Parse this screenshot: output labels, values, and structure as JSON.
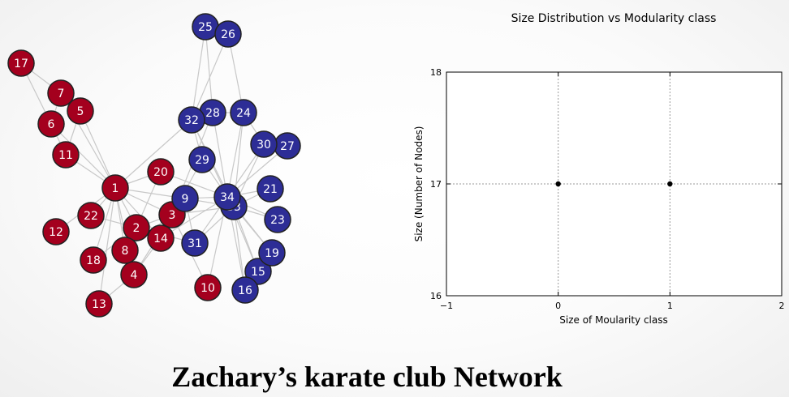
{
  "caption": "Zachary’s karate club Network",
  "network": {
    "group_colors": {
      "red": "#a4001e",
      "blue": "#2d2d96"
    },
    "edge_color": "#c8c8c8",
    "nodes": [
      {
        "id": "1",
        "group": "red"
      },
      {
        "id": "2",
        "group": "red"
      },
      {
        "id": "3",
        "group": "red"
      },
      {
        "id": "4",
        "group": "red"
      },
      {
        "id": "5",
        "group": "red"
      },
      {
        "id": "6",
        "group": "red"
      },
      {
        "id": "7",
        "group": "red"
      },
      {
        "id": "8",
        "group": "red"
      },
      {
        "id": "9",
        "group": "blue"
      },
      {
        "id": "10",
        "group": "red"
      },
      {
        "id": "11",
        "group": "red"
      },
      {
        "id": "12",
        "group": "red"
      },
      {
        "id": "13",
        "group": "red"
      },
      {
        "id": "14",
        "group": "red"
      },
      {
        "id": "15",
        "group": "blue"
      },
      {
        "id": "16",
        "group": "blue"
      },
      {
        "id": "17",
        "group": "red"
      },
      {
        "id": "18",
        "group": "red"
      },
      {
        "id": "19",
        "group": "blue"
      },
      {
        "id": "20",
        "group": "red"
      },
      {
        "id": "21",
        "group": "blue"
      },
      {
        "id": "22",
        "group": "red"
      },
      {
        "id": "23",
        "group": "blue"
      },
      {
        "id": "24",
        "group": "blue"
      },
      {
        "id": "25",
        "group": "blue"
      },
      {
        "id": "26",
        "group": "blue"
      },
      {
        "id": "27",
        "group": "blue"
      },
      {
        "id": "28",
        "group": "blue"
      },
      {
        "id": "29",
        "group": "blue"
      },
      {
        "id": "30",
        "group": "blue"
      },
      {
        "id": "31",
        "group": "blue"
      },
      {
        "id": "32",
        "group": "blue"
      },
      {
        "id": "33",
        "group": "blue"
      },
      {
        "id": "34",
        "group": "blue"
      }
    ],
    "edges": [
      [
        "1",
        "2"
      ],
      [
        "1",
        "3"
      ],
      [
        "1",
        "4"
      ],
      [
        "1",
        "5"
      ],
      [
        "1",
        "6"
      ],
      [
        "1",
        "7"
      ],
      [
        "1",
        "8"
      ],
      [
        "1",
        "9"
      ],
      [
        "1",
        "11"
      ],
      [
        "1",
        "12"
      ],
      [
        "1",
        "13"
      ],
      [
        "1",
        "14"
      ],
      [
        "1",
        "18"
      ],
      [
        "1",
        "20"
      ],
      [
        "1",
        "22"
      ],
      [
        "1",
        "32"
      ],
      [
        "2",
        "3"
      ],
      [
        "2",
        "4"
      ],
      [
        "2",
        "8"
      ],
      [
        "2",
        "14"
      ],
      [
        "2",
        "18"
      ],
      [
        "2",
        "20"
      ],
      [
        "2",
        "22"
      ],
      [
        "2",
        "31"
      ],
      [
        "3",
        "4"
      ],
      [
        "3",
        "8"
      ],
      [
        "3",
        "9"
      ],
      [
        "3",
        "10"
      ],
      [
        "3",
        "14"
      ],
      [
        "3",
        "28"
      ],
      [
        "3",
        "29"
      ],
      [
        "3",
        "33"
      ],
      [
        "4",
        "8"
      ],
      [
        "4",
        "13"
      ],
      [
        "4",
        "14"
      ],
      [
        "5",
        "7"
      ],
      [
        "5",
        "11"
      ],
      [
        "6",
        "7"
      ],
      [
        "6",
        "11"
      ],
      [
        "6",
        "17"
      ],
      [
        "7",
        "17"
      ],
      [
        "9",
        "31"
      ],
      [
        "9",
        "33"
      ],
      [
        "9",
        "34"
      ],
      [
        "10",
        "34"
      ],
      [
        "14",
        "34"
      ],
      [
        "15",
        "33"
      ],
      [
        "15",
        "34"
      ],
      [
        "16",
        "33"
      ],
      [
        "16",
        "34"
      ],
      [
        "19",
        "33"
      ],
      [
        "19",
        "34"
      ],
      [
        "20",
        "34"
      ],
      [
        "21",
        "33"
      ],
      [
        "21",
        "34"
      ],
      [
        "23",
        "33"
      ],
      [
        "23",
        "34"
      ],
      [
        "24",
        "26"
      ],
      [
        "24",
        "28"
      ],
      [
        "24",
        "30"
      ],
      [
        "24",
        "33"
      ],
      [
        "24",
        "34"
      ],
      [
        "25",
        "26"
      ],
      [
        "25",
        "28"
      ],
      [
        "25",
        "32"
      ],
      [
        "26",
        "32"
      ],
      [
        "27",
        "30"
      ],
      [
        "27",
        "34"
      ],
      [
        "28",
        "34"
      ],
      [
        "29",
        "32"
      ],
      [
        "29",
        "34"
      ],
      [
        "30",
        "33"
      ],
      [
        "30",
        "34"
      ],
      [
        "31",
        "33"
      ],
      [
        "31",
        "34"
      ],
      [
        "32",
        "33"
      ],
      [
        "32",
        "34"
      ],
      [
        "33",
        "34"
      ]
    ]
  },
  "chart_data": {
    "type": "scatter",
    "title": "Size Distribution vs Modularity class",
    "xlabel": "Size of Moularity class",
    "ylabel": "Size (Number of Nodes)",
    "x": [
      0,
      1
    ],
    "y": [
      17,
      17
    ],
    "xlim": [
      -1,
      2
    ],
    "ylim": [
      16,
      18
    ],
    "xticks": [
      "−1",
      "0",
      "1",
      "2"
    ],
    "yticks": [
      "16",
      "17",
      "18"
    ],
    "grid": true,
    "marker_color": "#000000"
  }
}
